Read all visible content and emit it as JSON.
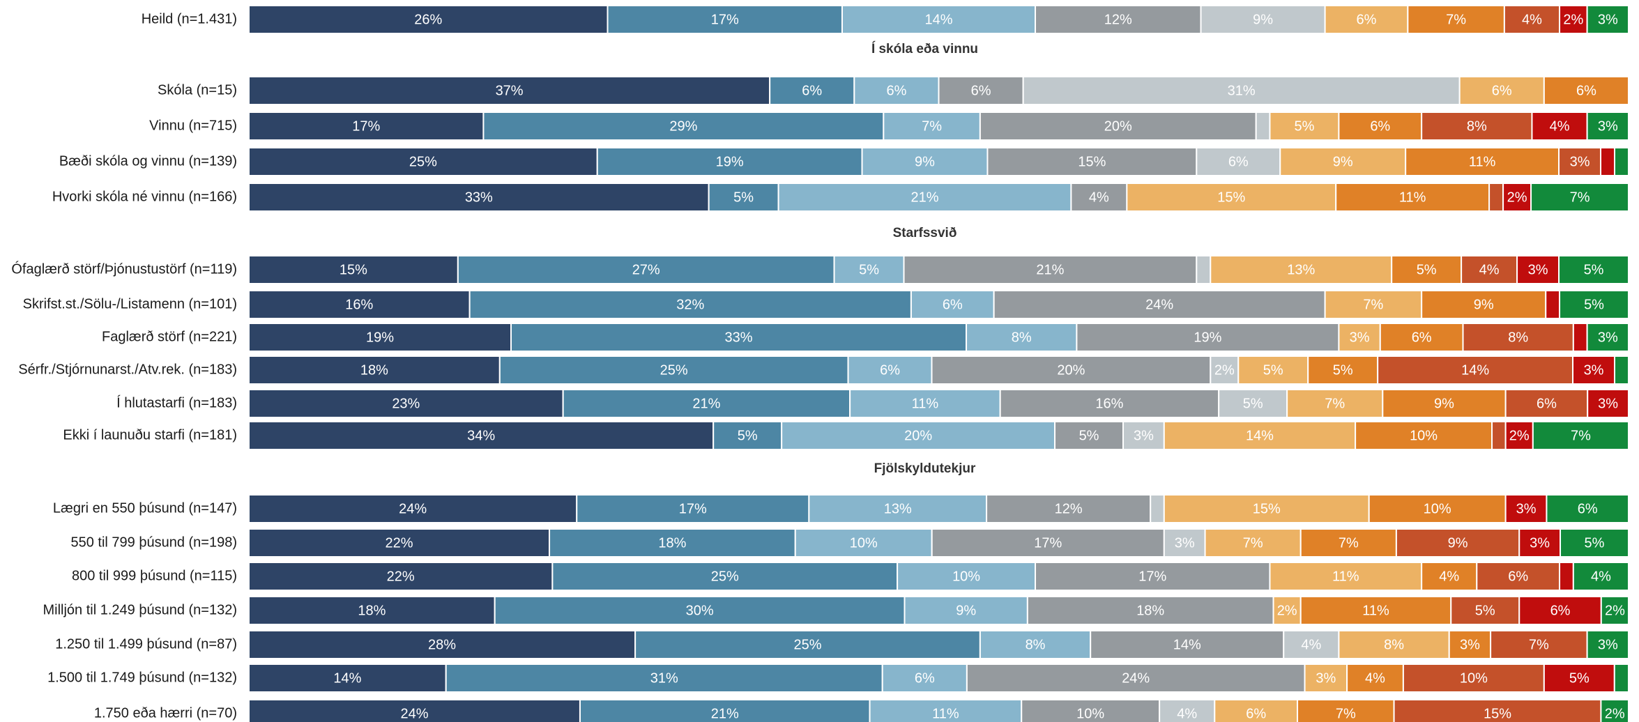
{
  "chart_data": {
    "type": "bar",
    "orientation": "horizontal",
    "stacked": true,
    "percent_stacked": true,
    "grid": false,
    "legend": "none",
    "xlim": [
      0,
      100
    ],
    "colors": [
      "#2e4466",
      "#4d86a4",
      "#87b5cc",
      "#959a9e",
      "#c0c8cc",
      "#ecb264",
      "#e08127",
      "#c4512a",
      "#c00d0d",
      "#128a3b"
    ],
    "rows": [
      {
        "label": "Heild (n=1.431)",
        "values": [
          26,
          17,
          14,
          12,
          9,
          6,
          7,
          4,
          2,
          3
        ],
        "labels": [
          "26%",
          "17%",
          "14%",
          "12%",
          "9%",
          "6%",
          "7%",
          "4%",
          "2%",
          "3%"
        ]
      },
      {
        "section": "Í skóla eða vinnu"
      },
      {
        "label": "Skóla (n=15)",
        "values": [
          37,
          6,
          6,
          6,
          31,
          6,
          6,
          0,
          0,
          0
        ],
        "labels": [
          "37%",
          "6%",
          "6%",
          "6%",
          "31%",
          "6%",
          "6%",
          "",
          "",
          ""
        ]
      },
      {
        "label": "Vinnu (n=715)",
        "values": [
          17,
          29,
          7,
          20,
          1,
          5,
          6,
          8,
          4,
          3
        ],
        "labels": [
          "17%",
          "29%",
          "7%",
          "20%",
          "",
          "5%",
          "6%",
          "8%",
          "4%",
          "3%"
        ]
      },
      {
        "label": "Bæði skóla og vinnu (n=139)",
        "values": [
          25,
          19,
          9,
          15,
          6,
          9,
          11,
          3,
          1,
          1
        ],
        "labels": [
          "25%",
          "19%",
          "9%",
          "15%",
          "6%",
          "9%",
          "11%",
          "3%",
          "",
          ""
        ]
      },
      {
        "label": "Hvorki skóla né vinnu (n=166)",
        "values": [
          33,
          5,
          21,
          4,
          0,
          15,
          11,
          1,
          2,
          7
        ],
        "labels": [
          "33%",
          "5%",
          "21%",
          "4%",
          "",
          "15%",
          "11%",
          "",
          "2%",
          "7%"
        ]
      },
      {
        "section": "Starfssvið"
      },
      {
        "label": "Ófaglærð störf/Þjónustustörf (n=119)",
        "values": [
          15,
          27,
          5,
          21,
          1,
          13,
          5,
          4,
          3,
          5
        ],
        "labels": [
          "15%",
          "27%",
          "5%",
          "21%",
          "",
          "13%",
          "5%",
          "4%",
          "3%",
          "5%"
        ]
      },
      {
        "label": "Skrifst.st./Sölu-/Listamenn (n=101)",
        "values": [
          16,
          32,
          6,
          24,
          0,
          7,
          9,
          0,
          1,
          5
        ],
        "labels": [
          "16%",
          "32%",
          "6%",
          "24%",
          "",
          "7%",
          "9%",
          "",
          "",
          "5%"
        ]
      },
      {
        "label": "Faglærð störf (n=221)",
        "values": [
          19,
          33,
          8,
          19,
          0,
          3,
          6,
          8,
          1,
          3
        ],
        "labels": [
          "19%",
          "33%",
          "8%",
          "19%",
          "",
          "3%",
          "6%",
          "8%",
          "",
          "3%"
        ]
      },
      {
        "label": "Sérfr./Stjórnunarst./Atv.rek. (n=183)",
        "values": [
          18,
          25,
          6,
          20,
          2,
          5,
          5,
          14,
          3,
          1
        ],
        "labels": [
          "18%",
          "25%",
          "6%",
          "20%",
          "2%",
          "5%",
          "5%",
          "14%",
          "3%",
          ""
        ]
      },
      {
        "label": "Í hlutastarfi (n=183)",
        "values": [
          23,
          21,
          11,
          16,
          5,
          7,
          9,
          6,
          3,
          0
        ],
        "labels": [
          "23%",
          "21%",
          "11%",
          "16%",
          "5%",
          "7%",
          "9%",
          "6%",
          "3%",
          ""
        ]
      },
      {
        "label": "Ekki í launuðu starfi (n=181)",
        "values": [
          34,
          5,
          20,
          5,
          3,
          14,
          10,
          1,
          2,
          7
        ],
        "labels": [
          "34%",
          "5%",
          "20%",
          "5%",
          "3%",
          "14%",
          "10%",
          "",
          "2%",
          "7%"
        ]
      },
      {
        "section": "Fjölskyldutekjur"
      },
      {
        "label": "Lægri en 550 þúsund (n=147)",
        "values": [
          24,
          17,
          13,
          12,
          1,
          15,
          10,
          0,
          3,
          6
        ],
        "labels": [
          "24%",
          "17%",
          "13%",
          "12%",
          "",
          "15%",
          "10%",
          "",
          "3%",
          "6%"
        ]
      },
      {
        "label": "550 til 799 þúsund (n=198)",
        "values": [
          22,
          18,
          10,
          17,
          3,
          7,
          7,
          9,
          3,
          5
        ],
        "labels": [
          "22%",
          "18%",
          "10%",
          "17%",
          "3%",
          "7%",
          "7%",
          "9%",
          "3%",
          "5%"
        ]
      },
      {
        "label": "800 til 999 þúsund (n=115)",
        "values": [
          22,
          25,
          10,
          17,
          0,
          11,
          4,
          6,
          1,
          4
        ],
        "labels": [
          "22%",
          "25%",
          "10%",
          "17%",
          "",
          "11%",
          "4%",
          "6%",
          "",
          "4%"
        ]
      },
      {
        "label": "Milljón til 1.249 þúsund (n=132)",
        "values": [
          18,
          30,
          9,
          18,
          0,
          2,
          11,
          5,
          6,
          2
        ],
        "labels": [
          "18%",
          "30%",
          "9%",
          "18%",
          "",
          "2%",
          "11%",
          "5%",
          "6%",
          "2%"
        ]
      },
      {
        "label": "1.250 til 1.499 þúsund (n=87)",
        "values": [
          28,
          25,
          8,
          14,
          4,
          8,
          3,
          7,
          0,
          3
        ],
        "labels": [
          "28%",
          "25%",
          "8%",
          "14%",
          "4%",
          "8%",
          "3%",
          "7%",
          "",
          "3%"
        ]
      },
      {
        "label": "1.500 til 1.749 þúsund (n=132)",
        "values": [
          14,
          31,
          6,
          24,
          0,
          3,
          4,
          10,
          5,
          1
        ],
        "labels": [
          "14%",
          "31%",
          "6%",
          "24%",
          "",
          "3%",
          "4%",
          "10%",
          "5%",
          ""
        ]
      },
      {
        "label": "1.750 eða hærri (n=70)",
        "values": [
          24,
          21,
          11,
          10,
          4,
          6,
          7,
          15,
          0,
          2
        ],
        "labels": [
          "24%",
          "21%",
          "11%",
          "10%",
          "4%",
          "6%",
          "7%",
          "15%",
          "",
          "2%"
        ]
      }
    ]
  }
}
